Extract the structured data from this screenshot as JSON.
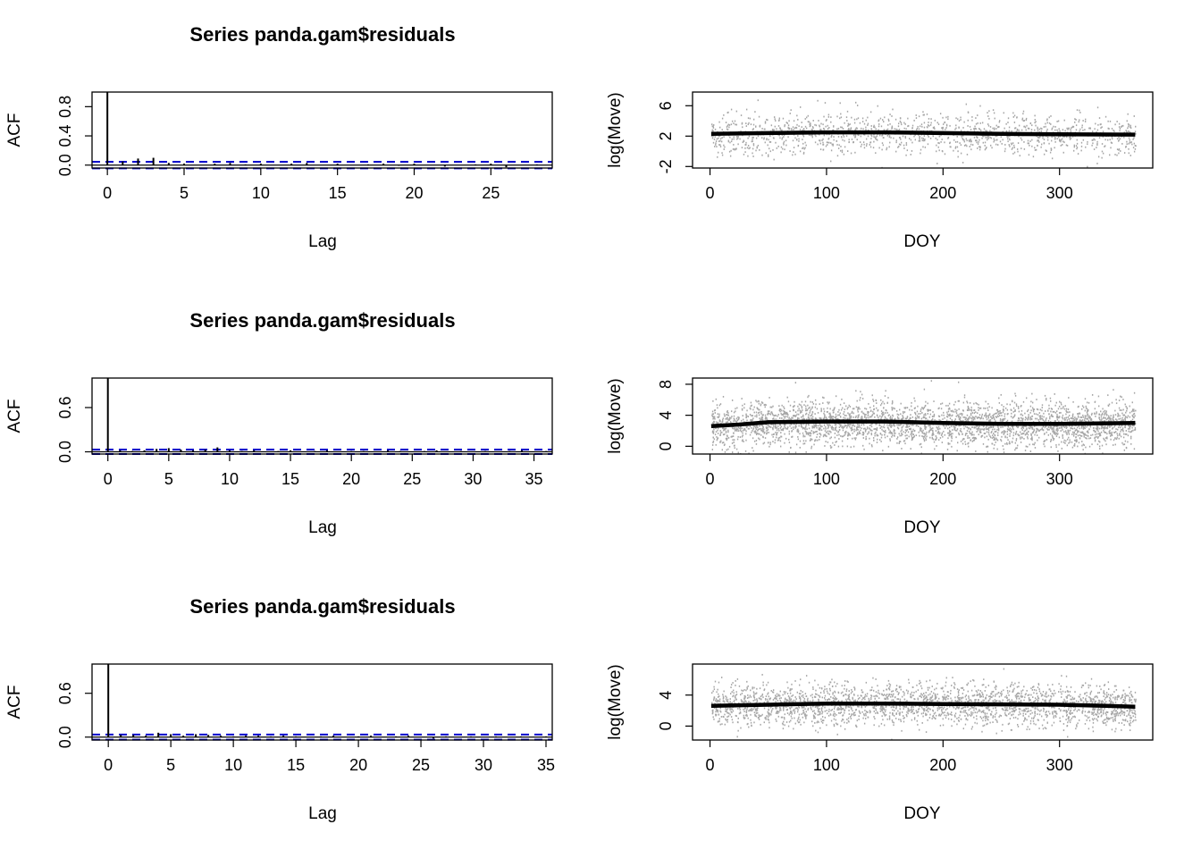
{
  "chart_data": [
    {
      "type": "bar",
      "title": "Series  panda.gam$residuals",
      "xlabel": "Lag",
      "ylabel": "ACF",
      "x_ticks": [
        "0",
        "5",
        "10",
        "15",
        "20",
        "25"
      ],
      "y_ticks": [
        "0.0",
        "0.4",
        "0.8"
      ],
      "xlim": [
        -1,
        29
      ],
      "ylim": [
        -0.04,
        1.0
      ],
      "lags": [
        0,
        1,
        2,
        3,
        4,
        5,
        6,
        7,
        8,
        9,
        10,
        11,
        12,
        13,
        14,
        15,
        16,
        17,
        18,
        19,
        20,
        21,
        22,
        23,
        24,
        25,
        26,
        27,
        28
      ],
      "values": [
        1.0,
        0.05,
        0.09,
        0.1,
        0.03,
        0.02,
        0.0,
        0.02,
        0.03,
        0.01,
        0.02,
        0.0,
        0.02,
        0.03,
        0.0,
        0.02,
        0.0,
        0.01,
        0.02,
        -0.01,
        0.02,
        0.0,
        -0.02,
        0.0,
        0.01,
        0.02,
        -0.03,
        0.0,
        0.01
      ],
      "ci": 0.045,
      "ci_color": "#0000cc",
      "bar_color": "#000000"
    },
    {
      "type": "scatter",
      "xlabel": "DOY",
      "ylabel": "log(Move)",
      "x_ticks": [
        "0",
        "100",
        "200",
        "300"
      ],
      "y_ticks": [
        "-2",
        "2",
        "6"
      ],
      "xlim": [
        -15,
        380
      ],
      "ylim": [
        -2.2,
        7.8
      ],
      "n_points": 1400,
      "point_sd": 1.35,
      "point_color": "#a6a6a6",
      "line_color": "#000000",
      "smooth": {
        "x": [
          1,
          50,
          100,
          150,
          200,
          250,
          300,
          365
        ],
        "y": [
          2.3,
          2.4,
          2.5,
          2.5,
          2.4,
          2.3,
          2.25,
          2.2
        ]
      }
    },
    {
      "type": "bar",
      "title": "Series  panda.gam$residuals",
      "xlabel": "Lag",
      "ylabel": "ACF",
      "x_ticks": [
        "0",
        "5",
        "10",
        "15",
        "20",
        "25",
        "30",
        "35"
      ],
      "y_ticks": [
        "0.0",
        "0.6"
      ],
      "xlim": [
        -1.3,
        36.5
      ],
      "ylim": [
        -0.03,
        1.0
      ],
      "lags": [
        0,
        1,
        2,
        3,
        4,
        5,
        6,
        7,
        8,
        9,
        10,
        11,
        12,
        13,
        14,
        15,
        16,
        17,
        18,
        19,
        20,
        21,
        22,
        23,
        24,
        25,
        26,
        27,
        28,
        29,
        30,
        31,
        32,
        33,
        34,
        35,
        36
      ],
      "values": [
        1.0,
        0.02,
        0.01,
        0.02,
        0.04,
        0.05,
        0.03,
        0.02,
        0.03,
        0.06,
        0.02,
        0.01,
        0.02,
        0.0,
        0.01,
        0.02,
        0.0,
        0.01,
        0.02,
        0.0,
        0.01,
        0.01,
        0.0,
        0.02,
        0.01,
        0.0,
        0.01,
        0.02,
        0.0,
        0.01,
        0.0,
        0.01,
        0.0,
        0.01,
        0.02,
        0.0,
        0.01
      ],
      "ci": 0.03,
      "ci_color": "#0000cc",
      "bar_color": "#000000"
    },
    {
      "type": "scatter",
      "xlabel": "DOY",
      "ylabel": "log(Move)",
      "x_ticks": [
        "0",
        "100",
        "200",
        "300"
      ],
      "y_ticks": [
        "0",
        "4",
        "8"
      ],
      "xlim": [
        -15,
        380
      ],
      "ylim": [
        -1.0,
        8.8
      ],
      "n_points": 3200,
      "point_sd": 1.45,
      "point_color": "#a6a6a6",
      "line_color": "#000000",
      "smooth": {
        "x": [
          1,
          25,
          50,
          100,
          150,
          200,
          250,
          300,
          365
        ],
        "y": [
          2.6,
          2.8,
          3.1,
          3.2,
          3.2,
          3.0,
          2.9,
          2.9,
          3.0
        ]
      }
    },
    {
      "type": "bar",
      "title": "Series  panda.gam$residuals",
      "xlabel": "Lag",
      "ylabel": "ACF",
      "x_ticks": [
        "0",
        "5",
        "10",
        "15",
        "20",
        "25",
        "30",
        "35"
      ],
      "y_ticks": [
        "0.0",
        "0.6"
      ],
      "xlim": [
        -1.3,
        35.5
      ],
      "ylim": [
        -0.04,
        1.0
      ],
      "lags": [
        0,
        1,
        2,
        3,
        4,
        5,
        6,
        7,
        8,
        9,
        10,
        11,
        12,
        13,
        14,
        15,
        16,
        17,
        18,
        19,
        20,
        21,
        22,
        23,
        24,
        25,
        26,
        27,
        28,
        29,
        30,
        31,
        32,
        33,
        34,
        35
      ],
      "values": [
        1.0,
        0.03,
        0.03,
        0.02,
        0.06,
        0.04,
        0.02,
        0.04,
        0.03,
        0.02,
        0.01,
        0.02,
        0.02,
        0.01,
        0.02,
        0.01,
        0.0,
        0.01,
        0.02,
        0.0,
        0.01,
        0.02,
        0.0,
        0.01,
        0.02,
        0.0,
        -0.02,
        0.01,
        0.0,
        0.01,
        0.0,
        0.01,
        0.0,
        0.01,
        0.0,
        0.01
      ],
      "ci": 0.035,
      "ci_color": "#0000cc",
      "bar_color": "#000000"
    },
    {
      "type": "scatter",
      "xlabel": "DOY",
      "ylabel": "log(Move)",
      "x_ticks": [
        "0",
        "100",
        "200",
        "300"
      ],
      "y_ticks": [
        "0",
        "4"
      ],
      "xlim": [
        -15,
        380
      ],
      "ylim": [
        -1.8,
        8.0
      ],
      "n_points": 2600,
      "point_sd": 1.35,
      "point_color": "#a6a6a6",
      "line_color": "#000000",
      "smooth": {
        "x": [
          1,
          50,
          100,
          150,
          200,
          250,
          300,
          340,
          365
        ],
        "y": [
          2.6,
          2.75,
          2.9,
          2.9,
          2.85,
          2.8,
          2.75,
          2.6,
          2.5
        ]
      }
    }
  ]
}
